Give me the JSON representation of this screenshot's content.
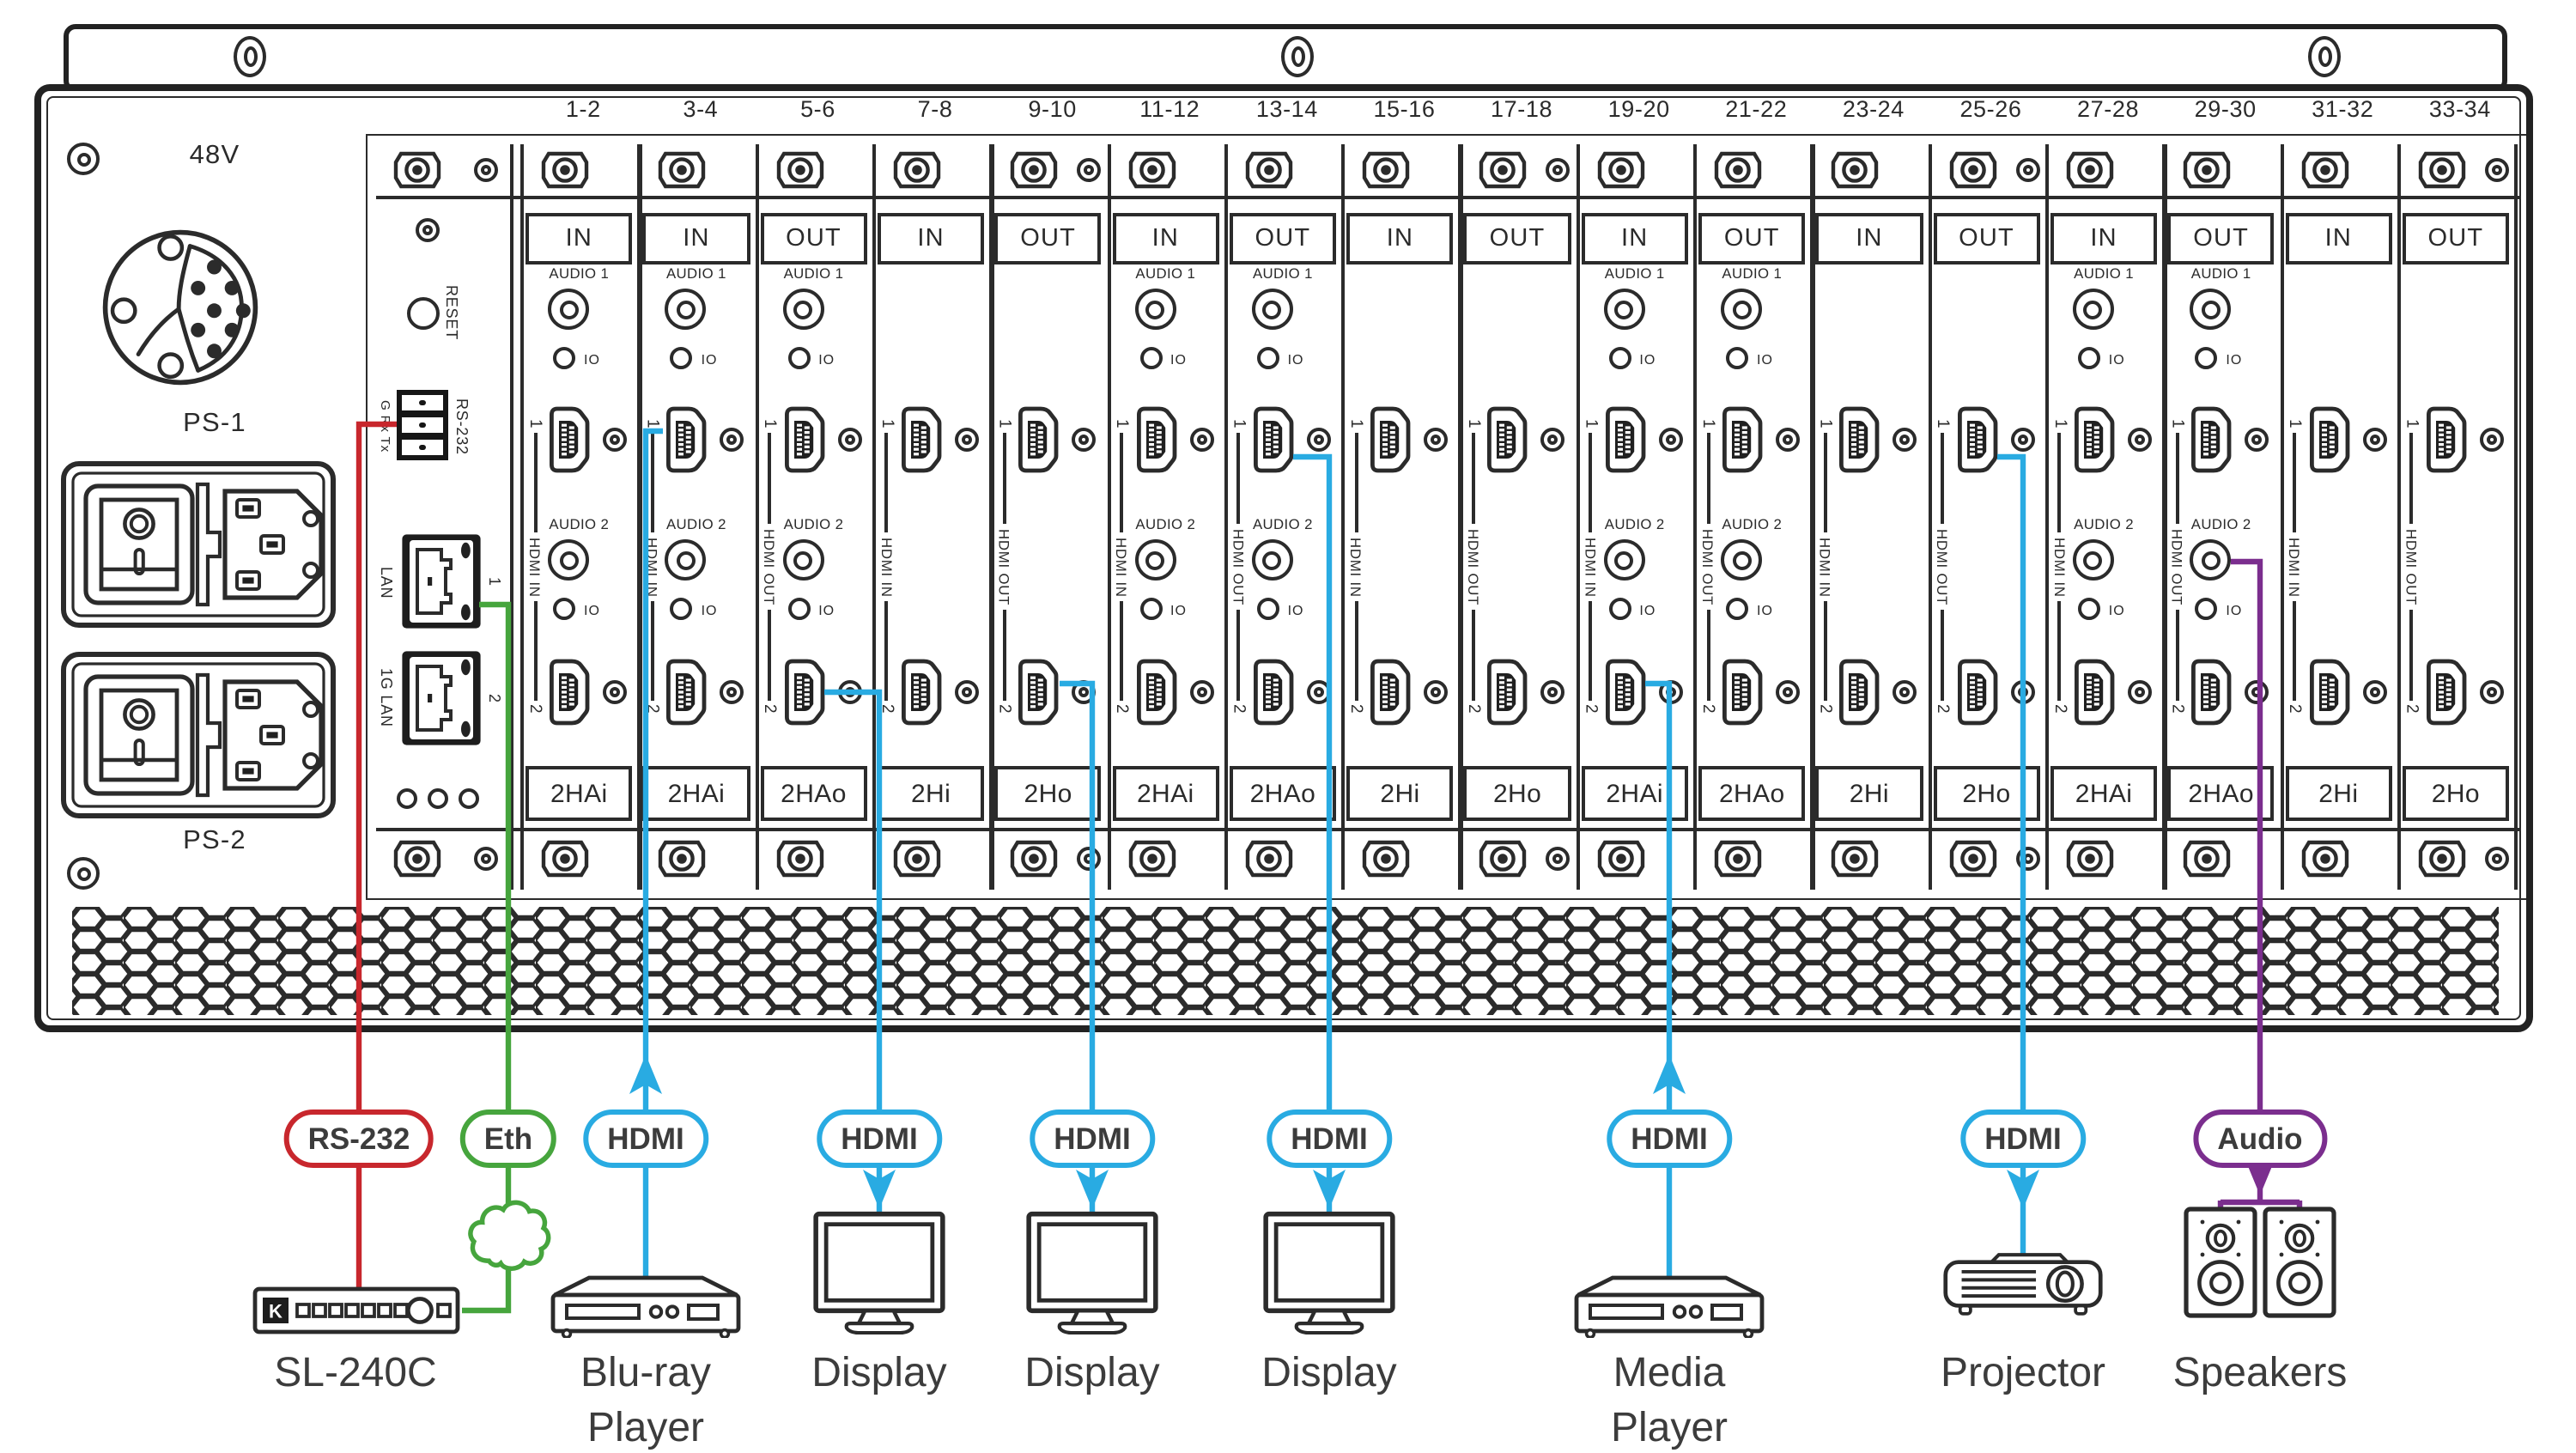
{
  "colors": {
    "ink": "#2b2b2b",
    "serial": "#C8272D",
    "ethernet": "#46A53D",
    "hdmi": "#29ABE2",
    "audio": "#7B2E8E"
  },
  "panel": {
    "voltage": "48V",
    "ps1": "PS-1",
    "ps2": "PS-2",
    "reset": "RESET",
    "rs232": "RS-232",
    "rs232_pins": "G Rx Tx",
    "lan1": "LAN",
    "lan1_port": "1",
    "lan2": "1G LAN",
    "lan2_port": "2"
  },
  "card": {
    "audio1": "AUDIO 1",
    "audio2": "AUDIO 2",
    "io": "IO",
    "port1": "1",
    "port2": "2",
    "hdmi_in": "HDMI IN",
    "hdmi_out": "HDMI OUT"
  },
  "slots": [
    {
      "number": "1-2",
      "io": "IN",
      "type": "2HAi"
    },
    {
      "number": "3-4",
      "io": "IN",
      "type": "2HAi"
    },
    {
      "number": "5-6",
      "io": "OUT",
      "type": "2HAo"
    },
    {
      "number": "7-8",
      "io": "IN",
      "type": "2Hi"
    },
    {
      "number": "9-10",
      "io": "OUT",
      "type": "2Ho"
    },
    {
      "number": "11-12",
      "io": "IN",
      "type": "2HAi"
    },
    {
      "number": "13-14",
      "io": "OUT",
      "type": "2HAo"
    },
    {
      "number": "15-16",
      "io": "IN",
      "type": "2Hi"
    },
    {
      "number": "17-18",
      "io": "OUT",
      "type": "2Ho"
    },
    {
      "number": "19-20",
      "io": "IN",
      "type": "2HAi"
    },
    {
      "number": "21-22",
      "io": "OUT",
      "type": "2HAo"
    },
    {
      "number": "23-24",
      "io": "IN",
      "type": "2Hi"
    },
    {
      "number": "25-26",
      "io": "OUT",
      "type": "2Ho"
    },
    {
      "number": "27-28",
      "io": "IN",
      "type": "2HAi"
    },
    {
      "number": "29-30",
      "io": "OUT",
      "type": "2HAo"
    },
    {
      "number": "31-32",
      "io": "IN",
      "type": "2Hi"
    },
    {
      "number": "33-34",
      "io": "OUT",
      "type": "2Ho"
    }
  ],
  "connections": [
    {
      "label": "RS-232",
      "type": "serial"
    },
    {
      "label": "Eth",
      "type": "ethernet"
    },
    {
      "label": "HDMI",
      "type": "hdmi"
    },
    {
      "label": "HDMI",
      "type": "hdmi"
    },
    {
      "label": "HDMI",
      "type": "hdmi"
    },
    {
      "label": "HDMI",
      "type": "hdmi"
    },
    {
      "label": "HDMI",
      "type": "hdmi"
    },
    {
      "label": "HDMI",
      "type": "hdmi"
    },
    {
      "label": "Audio",
      "type": "audio"
    }
  ],
  "devices": [
    {
      "name": "SL-240C",
      "lines": [
        "SL-240C"
      ]
    },
    {
      "name": "Blu-ray Player",
      "lines": [
        "Blu-ray",
        "Player"
      ]
    },
    {
      "name": "Display",
      "lines": [
        "Display"
      ]
    },
    {
      "name": "Display",
      "lines": [
        "Display"
      ]
    },
    {
      "name": "Display",
      "lines": [
        "Display"
      ]
    },
    {
      "name": "Media Player",
      "lines": [
        "Media",
        "Player"
      ]
    },
    {
      "name": "Projector",
      "lines": [
        "Projector"
      ]
    },
    {
      "name": "Speakers",
      "lines": [
        "Speakers"
      ]
    }
  ],
  "logo": {
    "kramer_k": "K"
  }
}
